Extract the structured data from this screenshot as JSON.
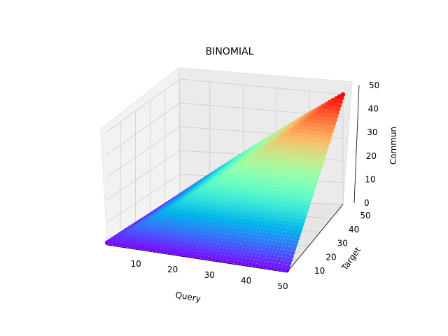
{
  "chart_data": {
    "type": "scatter",
    "projection": "3d",
    "title": "BINOMIAL",
    "xlabel": "Query",
    "ylabel": "Target",
    "zlabel": "Commun",
    "xlim": [
      1,
      50
    ],
    "ylim": [
      1,
      50
    ],
    "zlim": [
      0,
      50
    ],
    "xticks": [
      10,
      20,
      30,
      40,
      50
    ],
    "yticks": [
      10,
      20,
      30,
      40,
      50
    ],
    "zticks": [
      0,
      10,
      20,
      30,
      40,
      50
    ],
    "colormap": "rainbow",
    "surface_rule": "commun = min(query, target)",
    "grid": true
  }
}
